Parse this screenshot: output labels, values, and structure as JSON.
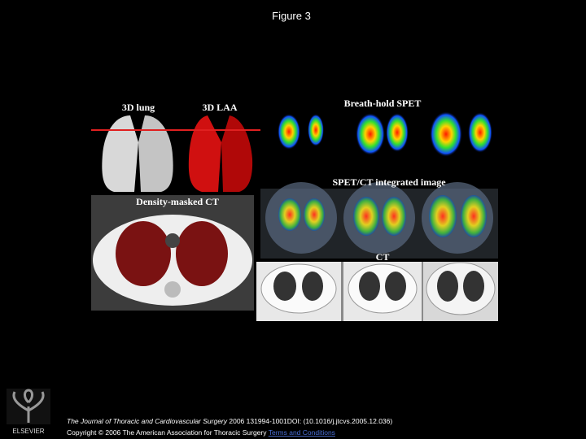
{
  "header": {
    "title": "Figure 3"
  },
  "figure": {
    "panels": [
      {
        "label": "3D lung"
      },
      {
        "label": "3D LAA"
      },
      {
        "label": "Breath-hold SPET"
      },
      {
        "label": "SPET/CT integrated image"
      },
      {
        "label": "Density-masked CT"
      },
      {
        "label": "CT"
      }
    ]
  },
  "footer": {
    "journal": "The Journal of Thoracic and Cardiovascular Surgery",
    "citation": " 2006 131994-1001DOI: (10.1016/j.jtcvs.2005.12.036)",
    "copyright": "Copyright © 2006 The American Association for Thoracic Surgery",
    "link": "Terms and Conditions",
    "publisher": "ELSEVIER"
  }
}
